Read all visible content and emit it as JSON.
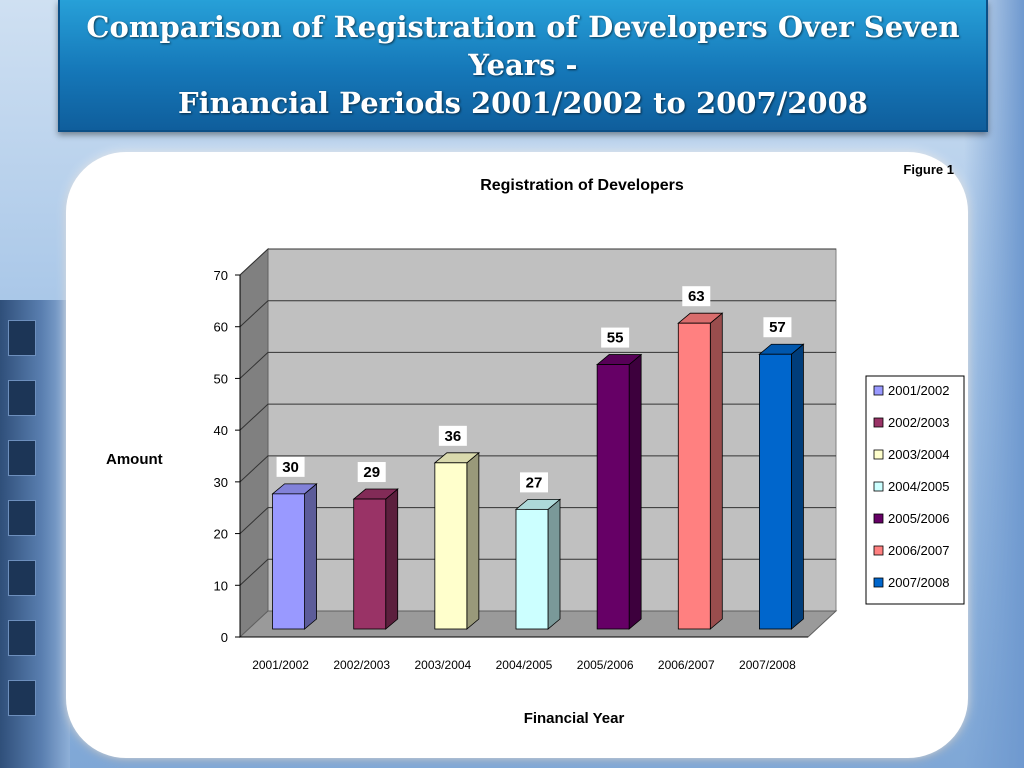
{
  "slide": {
    "title_line1": "Comparison of Registration of Developers Over Seven",
    "title_line2": "Years -",
    "title_line3": "Financial Periods 2001/2002 to 2007/2008"
  },
  "figure_label": "Figure 1",
  "chart_data": {
    "type": "bar",
    "title": "Registration of Developers",
    "xlabel": "Financial Year",
    "ylabel": "Amount",
    "ylim": [
      0,
      70
    ],
    "yticks": [
      0,
      10,
      20,
      30,
      40,
      50,
      60,
      70
    ],
    "categories": [
      "2001/2002",
      "2002/2003",
      "2003/2004",
      "2004/2005",
      "2005/2006",
      "2006/2007",
      "2007/2008"
    ],
    "values": [
      30,
      29,
      36,
      27,
      55,
      63,
      57
    ],
    "colors": [
      "#9999ff",
      "#993366",
      "#ffffcc",
      "#ccffff",
      "#660066",
      "#ff8080",
      "#0066cc"
    ],
    "legend": [
      "2001/2002",
      "2002/2003",
      "2003/2004",
      "2004/2005",
      "2005/2006",
      "2006/2007",
      "2007/2008"
    ],
    "legend_position": "right",
    "grid": true,
    "style": "3d"
  }
}
